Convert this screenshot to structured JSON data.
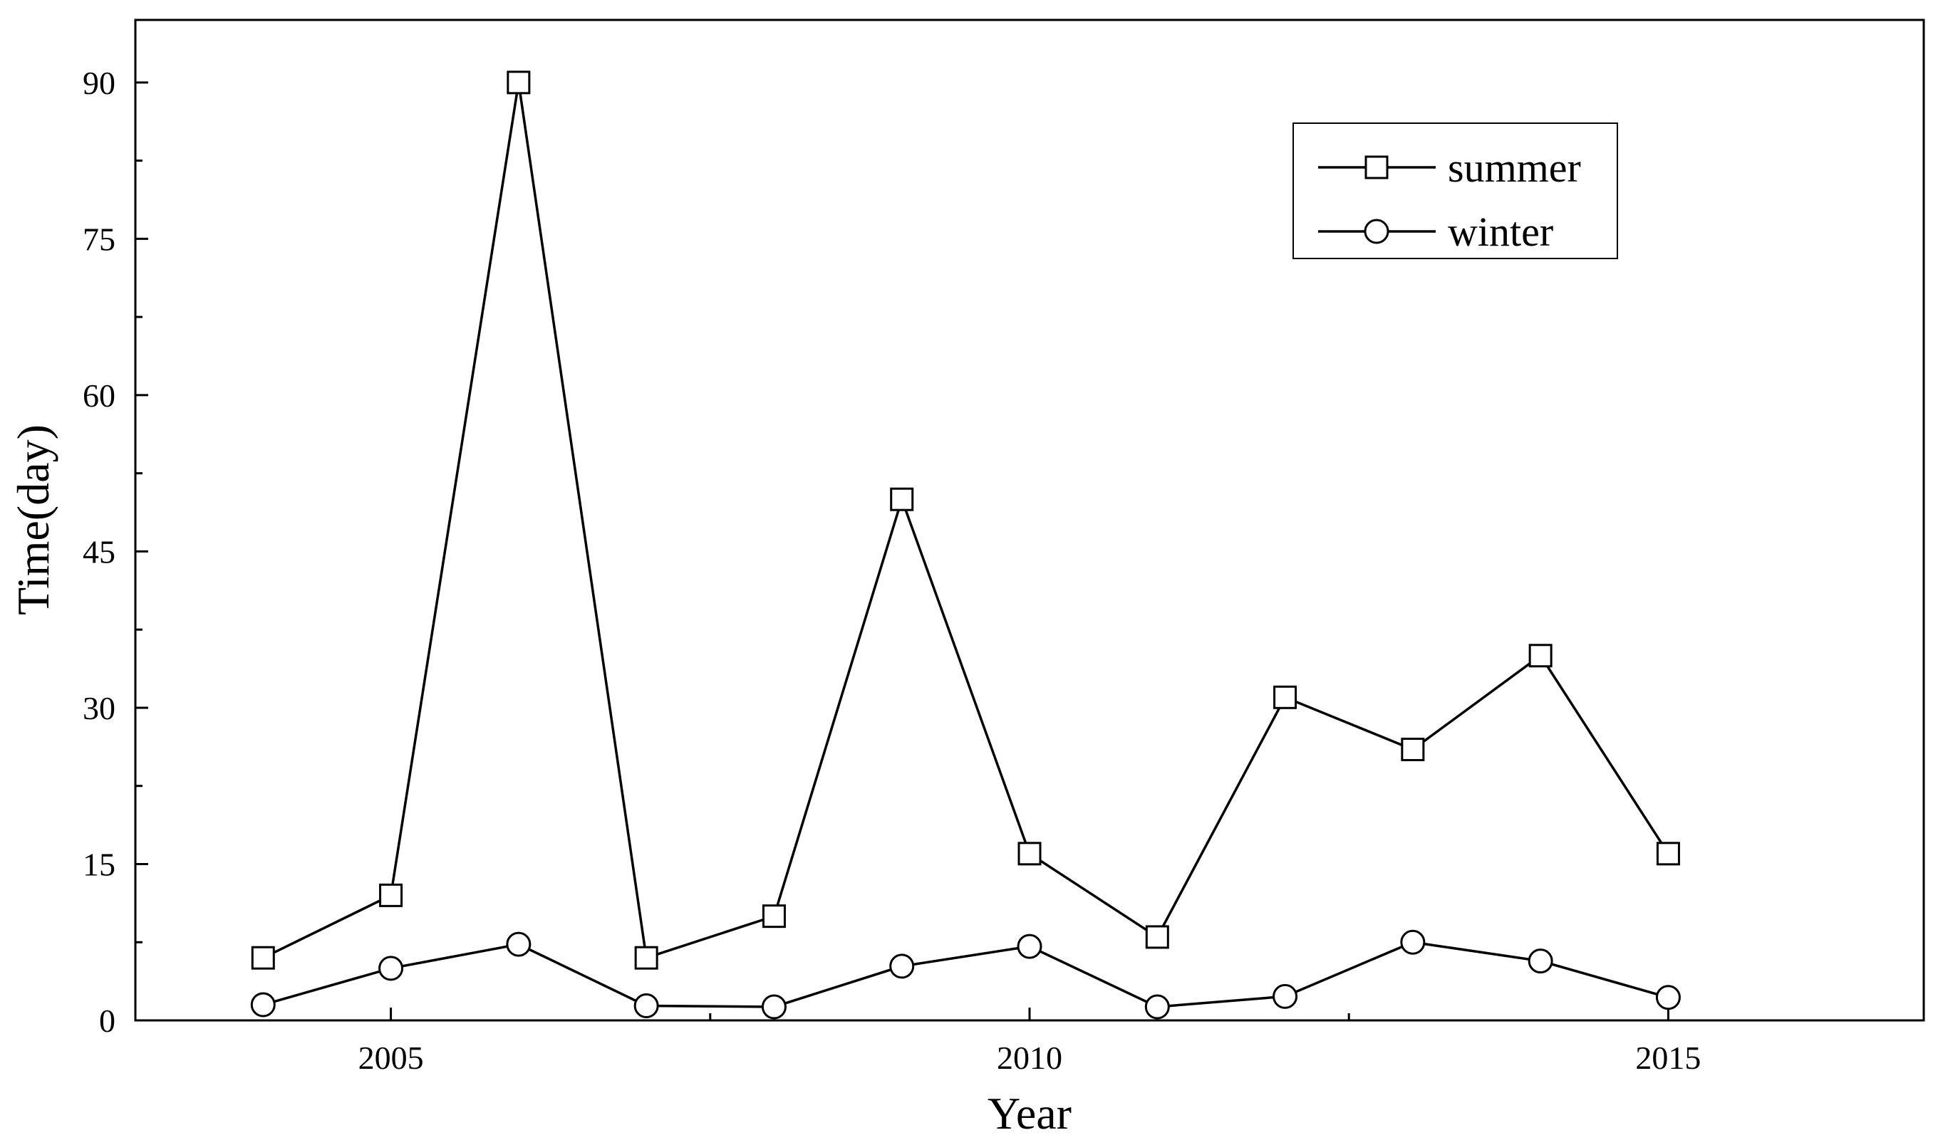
{
  "chart_data": {
    "type": "line",
    "title": "",
    "xlabel": "Year",
    "ylabel": "Time(day)",
    "xlim": [
      2003,
      2017
    ],
    "ylim": [
      0,
      96
    ],
    "x_ticks": [
      2005,
      2010,
      2015
    ],
    "x_tick_labels": [
      "2005",
      "2010",
      "2015"
    ],
    "x_minor_ticks": [
      2007.5,
      2012.5
    ],
    "y_ticks": [
      0,
      15,
      30,
      45,
      60,
      75,
      90
    ],
    "y_tick_labels": [
      "0",
      "15",
      "30",
      "45",
      "60",
      "75",
      "90"
    ],
    "y_minor_ticks": [
      7.5,
      22.5,
      37.5,
      52.5,
      67.5,
      82.5
    ],
    "grid": false,
    "legend_position": "top-right",
    "x": [
      2004,
      2005,
      2006,
      2007,
      2008,
      2009,
      2010,
      2011,
      2012,
      2013,
      2014,
      2015
    ],
    "series": [
      {
        "name": "summer",
        "marker": "square",
        "color": "#000000",
        "values": [
          6,
          12,
          90,
          6,
          10,
          50,
          16,
          8,
          31,
          26,
          35,
          16
        ]
      },
      {
        "name": "winter",
        "marker": "circle",
        "color": "#000000",
        "values": [
          1.5,
          5,
          7.3,
          1.4,
          1.3,
          5.2,
          7.1,
          1.3,
          2.3,
          7.5,
          5.7,
          2.2
        ]
      }
    ]
  }
}
